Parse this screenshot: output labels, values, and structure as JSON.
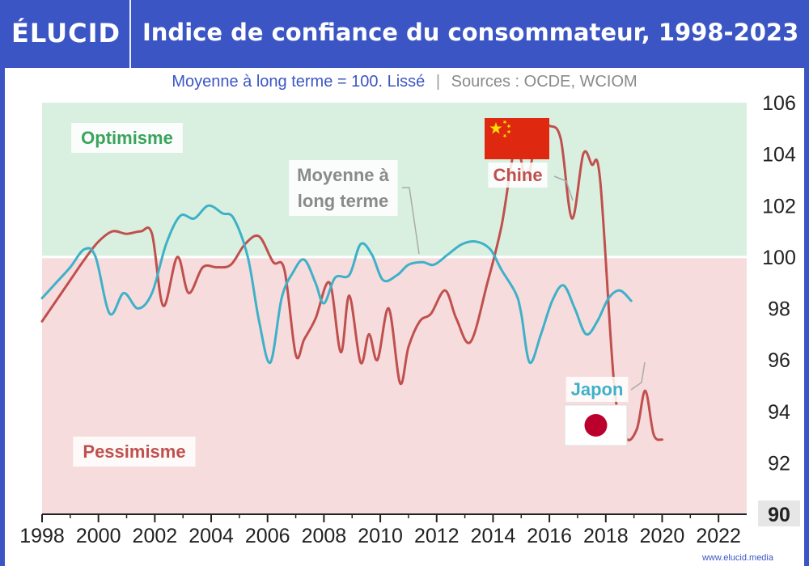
{
  "brand": {
    "logo": "ÉLUCID",
    "url": "www.elucid.media"
  },
  "title": "Indice de confiance du consommateur, 1998-2023",
  "subtitle": {
    "left": "Moyenne à long terme = 100. Lissé",
    "separator": "|",
    "right": "Sources : OCDE, WCIOM"
  },
  "zones": {
    "optimism": "Optimisme",
    "pessimism": "Pessimisme"
  },
  "annotations": {
    "mean_line1": "Moyenne à",
    "mean_line2": "long terme",
    "china": "Chine",
    "japan": "Japon"
  },
  "colors": {
    "china": "#c0504d",
    "japan": "#3eb1c8",
    "optimism_bg": "#d9f0e0",
    "pessimism_bg": "#f7dcdd",
    "optimism_text": "#3aa35c",
    "pessimism_text": "#c0504d",
    "brand": "#3b56c4"
  },
  "icons": {
    "china_flag": "china-flag-icon",
    "japan_flag": "japan-flag-icon"
  },
  "chart_data": {
    "type": "line",
    "xlim": [
      1998,
      2023
    ],
    "ylim": [
      90,
      106
    ],
    "x_ticks": [
      1998,
      2000,
      2002,
      2004,
      2006,
      2008,
      2010,
      2012,
      2014,
      2016,
      2018,
      2020,
      2022
    ],
    "y_ticks": [
      90,
      92,
      94,
      96,
      98,
      100,
      102,
      104,
      106
    ],
    "reference_line": 100,
    "grid": false,
    "series": [
      {
        "name": "Chine",
        "points": [
          [
            1998.0,
            97.5
          ],
          [
            1998.5,
            98.3
          ],
          [
            1999.0,
            99.1
          ],
          [
            1999.5,
            99.9
          ],
          [
            2000.0,
            100.6
          ],
          [
            2000.5,
            101.0
          ],
          [
            2001.0,
            100.9
          ],
          [
            2001.5,
            101.0
          ],
          [
            2001.9,
            100.9
          ],
          [
            2002.3,
            98.1
          ],
          [
            2002.8,
            100.0
          ],
          [
            2003.2,
            98.6
          ],
          [
            2003.7,
            99.6
          ],
          [
            2004.2,
            99.6
          ],
          [
            2004.7,
            99.7
          ],
          [
            2005.2,
            100.5
          ],
          [
            2005.7,
            100.8
          ],
          [
            2006.2,
            99.8
          ],
          [
            2006.6,
            99.5
          ],
          [
            2007.0,
            96.2
          ],
          [
            2007.3,
            96.8
          ],
          [
            2007.7,
            97.6
          ],
          [
            2008.2,
            99.0
          ],
          [
            2008.6,
            96.3
          ],
          [
            2008.9,
            98.5
          ],
          [
            2009.3,
            95.9
          ],
          [
            2009.6,
            97.0
          ],
          [
            2009.9,
            96.0
          ],
          [
            2010.3,
            98.0
          ],
          [
            2010.7,
            95.1
          ],
          [
            2011.0,
            96.5
          ],
          [
            2011.4,
            97.5
          ],
          [
            2011.8,
            97.8
          ],
          [
            2012.3,
            98.7
          ],
          [
            2012.7,
            97.6
          ],
          [
            2013.2,
            96.7
          ],
          [
            2013.8,
            99.0
          ],
          [
            2014.3,
            101.2
          ],
          [
            2014.8,
            104.3
          ],
          [
            2015.2,
            103.0
          ],
          [
            2015.6,
            105.0
          ],
          [
            2016.0,
            105.1
          ],
          [
            2016.4,
            104.6
          ],
          [
            2016.8,
            101.5
          ],
          [
            2017.2,
            104.0
          ],
          [
            2017.5,
            103.6
          ],
          [
            2017.8,
            103.0
          ],
          [
            2018.3,
            95.0
          ],
          [
            2018.7,
            93.0
          ],
          [
            2019.1,
            93.3
          ],
          [
            2019.4,
            94.8
          ],
          [
            2019.7,
            93.1
          ],
          [
            2020.0,
            92.9
          ]
        ]
      },
      {
        "name": "Japon",
        "points": [
          [
            1998.0,
            98.4
          ],
          [
            1998.5,
            99.0
          ],
          [
            1999.0,
            99.6
          ],
          [
            1999.5,
            100.3
          ],
          [
            1999.9,
            100.0
          ],
          [
            2000.4,
            97.8
          ],
          [
            2000.9,
            98.6
          ],
          [
            2001.4,
            98.0
          ],
          [
            2001.9,
            98.6
          ],
          [
            2002.4,
            100.5
          ],
          [
            2002.9,
            101.6
          ],
          [
            2003.4,
            101.5
          ],
          [
            2003.9,
            102.0
          ],
          [
            2004.4,
            101.7
          ],
          [
            2004.8,
            101.5
          ],
          [
            2005.3,
            100.0
          ],
          [
            2005.7,
            97.5
          ],
          [
            2006.1,
            95.9
          ],
          [
            2006.5,
            98.4
          ],
          [
            2006.9,
            99.4
          ],
          [
            2007.3,
            99.9
          ],
          [
            2007.7,
            99.0
          ],
          [
            2008.0,
            98.2
          ],
          [
            2008.4,
            99.2
          ],
          [
            2008.9,
            99.3
          ],
          [
            2009.3,
            100.5
          ],
          [
            2009.7,
            100.1
          ],
          [
            2010.1,
            99.1
          ],
          [
            2010.6,
            99.3
          ],
          [
            2011.0,
            99.7
          ],
          [
            2011.5,
            99.8
          ],
          [
            2011.9,
            99.7
          ],
          [
            2012.4,
            100.1
          ],
          [
            2012.9,
            100.5
          ],
          [
            2013.4,
            100.6
          ],
          [
            2013.9,
            100.3
          ],
          [
            2014.3,
            99.5
          ],
          [
            2014.8,
            98.6
          ],
          [
            2015.0,
            97.8
          ],
          [
            2015.3,
            95.9
          ],
          [
            2015.7,
            97.0
          ],
          [
            2016.1,
            98.3
          ],
          [
            2016.5,
            98.9
          ],
          [
            2016.9,
            98.0
          ],
          [
            2017.3,
            97.0
          ],
          [
            2017.7,
            97.5
          ],
          [
            2018.1,
            98.4
          ],
          [
            2018.5,
            98.7
          ],
          [
            2018.9,
            98.3
          ]
        ]
      }
    ]
  }
}
